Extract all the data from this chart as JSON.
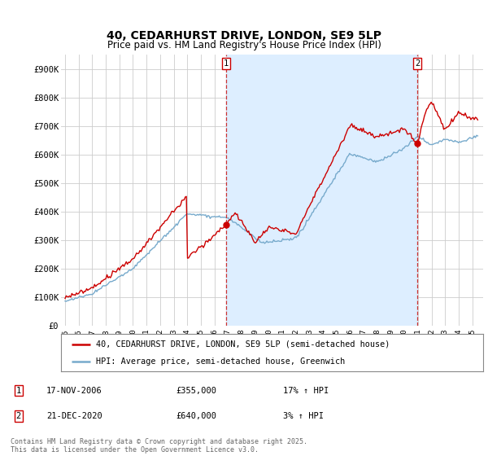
{
  "title": "40, CEDARHURST DRIVE, LONDON, SE9 5LP",
  "subtitle": "Price paid vs. HM Land Registry's House Price Index (HPI)",
  "red_label": "40, CEDARHURST DRIVE, LONDON, SE9 5LP (semi-detached house)",
  "blue_label": "HPI: Average price, semi-detached house, Greenwich",
  "footnote": "Contains HM Land Registry data © Crown copyright and database right 2025.\nThis data is licensed under the Open Government Licence v3.0.",
  "marker1_date": "17-NOV-2006",
  "marker1_price": "£355,000",
  "marker1_hpi": "17% ↑ HPI",
  "marker2_date": "21-DEC-2020",
  "marker2_price": "£640,000",
  "marker2_hpi": "3% ↑ HPI",
  "ylim": [
    0,
    950000
  ],
  "yticks": [
    0,
    100000,
    200000,
    300000,
    400000,
    500000,
    600000,
    700000,
    800000,
    900000
  ],
  "ytick_labels": [
    "£0",
    "£100K",
    "£200K",
    "£300K",
    "£400K",
    "£500K",
    "£600K",
    "£700K",
    "£800K",
    "£900K"
  ],
  "red_color": "#cc0000",
  "blue_color": "#77aacc",
  "fill_color": "#ddeeff",
  "vline_color": "#cc3333",
  "grid_color": "#cccccc",
  "bg_color": "#ffffff",
  "sale1_x": 2006.88,
  "sale1_y": 355000,
  "sale2_x": 2020.96,
  "sale2_y": 640000,
  "xmin": 1994.7,
  "xmax": 2025.8
}
